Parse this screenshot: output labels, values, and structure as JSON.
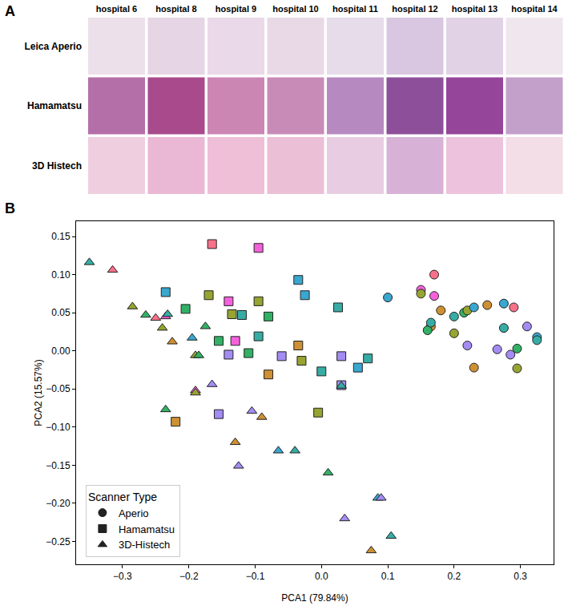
{
  "panel_a": {
    "letter": "A",
    "columns": [
      "hospital 6",
      "hospital 8",
      "hospital 9",
      "hospital 10",
      "hospital 11",
      "hospital 12",
      "hospital 13",
      "hospital 14"
    ],
    "rows": [
      "Leica Aperio",
      "Hamamatsu",
      "3D Histech"
    ],
    "tile_colors": [
      [
        "#ece0ea",
        "#e6d5e4",
        "#ead9e8",
        "#e9d9e6",
        "#e6dcea",
        "#d9c6e0",
        "#e2d2e6",
        "#f0e6ee"
      ],
      [
        "#b46fa8",
        "#a84a8c",
        "#cb86b4",
        "#c88bb8",
        "#b68ac1",
        "#8e4f9a",
        "#95459a",
        "#c3a0c9"
      ],
      [
        "#efcfdf",
        "#eab8d4",
        "#eebfd7",
        "#ebbfd6",
        "#e8cde2",
        "#d7b2d6",
        "#ecc2dc",
        "#f3dde7"
      ]
    ]
  },
  "chart_data": {
    "type": "scatter",
    "panel": "B",
    "x_label": "PCA1 (79.84%)",
    "y_label": "PCA2 (15.57%)",
    "legend_title": "Scanner Type",
    "legend": "lower left",
    "grid": false,
    "xlim": [
      -0.37,
      0.35
    ],
    "xticks": [
      {
        "value": -0.3,
        "label": "−0.3"
      },
      {
        "value": -0.2,
        "label": "−0.2"
      },
      {
        "value": -0.1,
        "label": "−0.1"
      },
      {
        "value": 0.0,
        "label": "0.0"
      },
      {
        "value": 0.1,
        "label": "0.1"
      },
      {
        "value": 0.2,
        "label": "0.2"
      },
      {
        "value": 0.3,
        "label": "0.3"
      }
    ],
    "ylim": [
      -0.28,
      0.17
    ],
    "yticks": [
      {
        "value": -0.25,
        "label": "−0.25"
      },
      {
        "value": -0.2,
        "label": "−0.20"
      },
      {
        "value": -0.15,
        "label": "−0.15"
      },
      {
        "value": -0.1,
        "label": "−0.10"
      },
      {
        "value": -0.05,
        "label": "−0.05"
      },
      {
        "value": 0.0,
        "label": "0.00"
      },
      {
        "value": 0.05,
        "label": "0.05"
      },
      {
        "value": 0.1,
        "label": "0.10"
      },
      {
        "value": 0.15,
        "label": "0.15"
      }
    ],
    "series": [
      {
        "name": "Aperio",
        "marker": "circle",
        "x": [
          0.17,
          0.1,
          0.15,
          0.15,
          0.17,
          0.18,
          0.165,
          0.16,
          0.165,
          0.2,
          0.2,
          0.215,
          0.22,
          0.22,
          0.23,
          0.23,
          0.25,
          0.265,
          0.275,
          0.275,
          0.29,
          0.285,
          0.295,
          0.295,
          0.31,
          0.325,
          0.325
        ],
        "y": [
          0.1,
          0.07,
          0.08,
          0.075,
          0.072,
          0.053,
          0.032,
          0.027,
          0.037,
          0.045,
          0.023,
          0.05,
          0.053,
          0.007,
          0.057,
          -0.022,
          0.06,
          0.002,
          0.062,
          0.03,
          0.057,
          -0.005,
          0.003,
          -0.023,
          0.032,
          0.018,
          0.014
        ],
        "colors": [
          "#f77189",
          "#39a7d0",
          "#f561dd",
          "#97a431",
          "#f561dd",
          "#ce9032",
          "#ce9032",
          "#32b166",
          "#36ada4",
          "#36ada4",
          "#97a431",
          "#32b166",
          "#97a431",
          "#a48cf4",
          "#39a7d0",
          "#ce9032",
          "#ce9032",
          "#a48cf4",
          "#39a7d0",
          "#36ada4",
          "#f77189",
          "#a48cf4",
          "#32b166",
          "#97a431",
          "#a48cf4",
          "#39a7d0",
          "#36ada4"
        ]
      },
      {
        "name": "Hamamatsu",
        "marker": "square",
        "x": [
          -0.165,
          -0.095,
          -0.035,
          -0.235,
          -0.17,
          -0.14,
          -0.095,
          -0.025,
          0.025,
          -0.205,
          -0.135,
          -0.12,
          -0.08,
          -0.155,
          -0.13,
          -0.095,
          -0.14,
          -0.11,
          -0.06,
          -0.035,
          -0.03,
          0.0,
          0.03,
          0.055,
          0.07,
          -0.08,
          0.03,
          -0.005,
          -0.155,
          -0.22
        ],
        "y": [
          0.14,
          0.135,
          0.093,
          0.077,
          0.073,
          0.065,
          0.065,
          0.073,
          0.057,
          0.055,
          0.048,
          0.047,
          0.045,
          0.013,
          0.013,
          0.019,
          -0.005,
          -0.003,
          -0.007,
          0.007,
          -0.013,
          -0.027,
          -0.007,
          -0.022,
          -0.01,
          -0.031,
          -0.045,
          -0.081,
          -0.083,
          -0.093
        ],
        "colors": [
          "#f77189",
          "#f561dd",
          "#39a7d0",
          "#39a7d0",
          "#97a431",
          "#f561dd",
          "#97a431",
          "#39a7d0",
          "#36ada4",
          "#32b166",
          "#97a431",
          "#36ada4",
          "#32b166",
          "#32b166",
          "#f561dd",
          "#36ada4",
          "#a48cf4",
          "#32b166",
          "#a48cf4",
          "#ce9032",
          "#97a431",
          "#36ada4",
          "#a48cf4",
          "#39a7d0",
          "#36ada4",
          "#ce9032",
          "#a48cf4",
          "#97a431",
          "#a48cf4",
          "#ce9032"
        ]
      },
      {
        "name": "3D-Histech",
        "marker": "triangle-up",
        "x": [
          -0.35,
          -0.315,
          -0.285,
          -0.265,
          -0.25,
          -0.235,
          -0.232,
          -0.24,
          -0.225,
          -0.195,
          -0.175,
          -0.19,
          -0.185,
          -0.19,
          -0.19,
          -0.165,
          -0.235,
          -0.105,
          -0.09,
          -0.13,
          -0.125,
          -0.065,
          -0.04,
          0.01,
          0.03,
          0.035,
          0.085,
          0.09,
          0.105,
          0.075
        ],
        "y": [
          0.116,
          0.106,
          0.058,
          0.047,
          0.043,
          0.045,
          0.048,
          0.03,
          0.012,
          0.017,
          0.032,
          -0.006,
          -0.006,
          -0.052,
          -0.055,
          -0.044,
          -0.077,
          -0.079,
          -0.087,
          -0.12,
          -0.151,
          -0.131,
          -0.131,
          -0.16,
          -0.046,
          -0.22,
          -0.193,
          -0.193,
          -0.243,
          -0.262
        ],
        "colors": [
          "#36ada4",
          "#f77189",
          "#97a431",
          "#32b166",
          "#f77189",
          "#f561dd",
          "#36ada4",
          "#97a431",
          "#ce9032",
          "#39a7d0",
          "#32b166",
          "#97a431",
          "#32b166",
          "#f561dd",
          "#97a431",
          "#a48cf4",
          "#32b166",
          "#a48cf4",
          "#ce9032",
          "#ce9032",
          "#a48cf4",
          "#39a7d0",
          "#36ada4",
          "#32b166",
          "#36ada4",
          "#a48cf4",
          "#39a7d0",
          "#a48cf4",
          "#36ada4",
          "#ce9032"
        ]
      }
    ]
  }
}
